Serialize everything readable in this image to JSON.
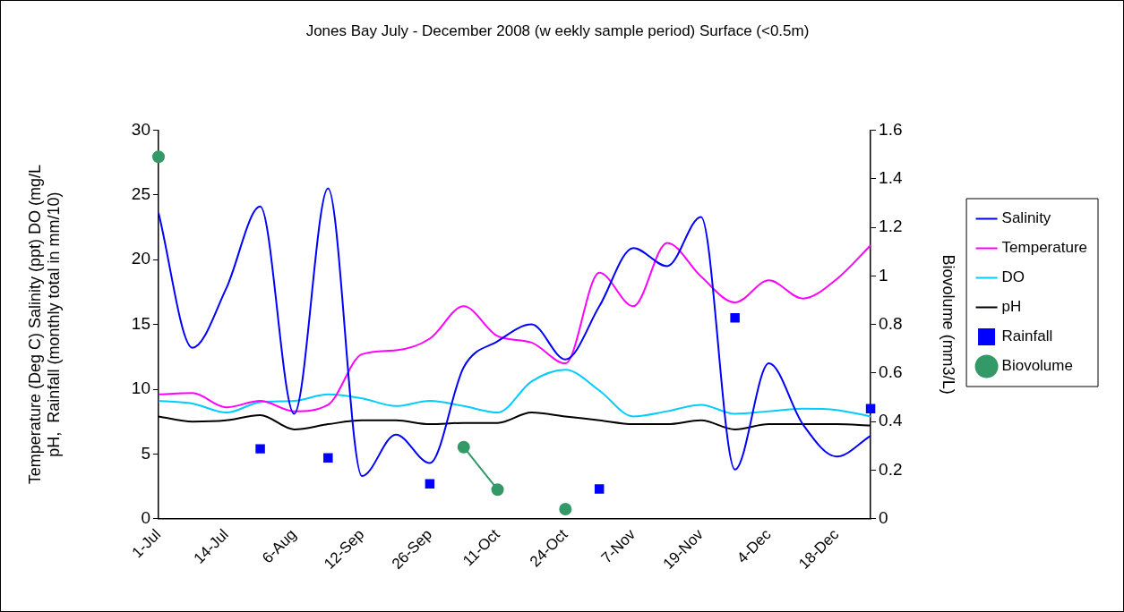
{
  "chart_data": {
    "type": "line",
    "title": "Jones Bay July - December 2008 (w eekly sample period) Surface (<0.5m)",
    "ylabel": "Temperature (Deg C) Salinity (ppt) DO (mg/L\npH,  Rainfall (monthly total in mm/10)",
    "y2label": "Biovolume (mm3/L)",
    "categories": [
      "1-Jul",
      null,
      "14-Jul",
      null,
      "6-Aug",
      null,
      "12-Sep",
      null,
      "26-Sep",
      null,
      "11-Oct",
      null,
      "24-Oct",
      null,
      "7-Nov",
      null,
      "19-Nov",
      null,
      "4-Dec",
      null,
      "18-Dec",
      null
    ],
    "series": [
      {
        "name": "Salinity",
        "color": "#0000ff",
        "marker": "none",
        "values": [
          23.6,
          13.2,
          17.8,
          24.1,
          8.1,
          25.5,
          3.3,
          6.5,
          4.3,
          11.7,
          13.7,
          15.0,
          12.3,
          16.4,
          20.9,
          19.5,
          23.3,
          3.8,
          12.0,
          7.3,
          4.8,
          6.4
        ]
      },
      {
        "name": "Temperature",
        "color": "#ff00ff",
        "marker": "none",
        "values": [
          9.6,
          9.7,
          8.6,
          9.1,
          8.3,
          8.8,
          12.7,
          13.0,
          13.9,
          16.4,
          14.1,
          13.6,
          12.0,
          19.0,
          16.4,
          21.3,
          18.7,
          16.7,
          18.4,
          17.0,
          18.5,
          21.1
        ]
      },
      {
        "name": "DO",
        "color": "#00ccff",
        "marker": "none",
        "values": [
          9.1,
          8.9,
          8.2,
          9.0,
          9.1,
          9.6,
          9.3,
          8.7,
          9.1,
          8.7,
          8.2,
          10.6,
          11.5,
          9.9,
          7.9,
          8.3,
          8.8,
          8.1,
          8.3,
          8.5,
          8.4,
          7.9
        ]
      },
      {
        "name": "pH",
        "color": "#000000",
        "marker": "none",
        "values": [
          7.9,
          7.5,
          7.6,
          8.0,
          6.9,
          7.3,
          7.6,
          7.6,
          7.3,
          7.4,
          7.4,
          8.2,
          7.9,
          7.6,
          7.3,
          7.3,
          7.6,
          6.9,
          7.3,
          7.3,
          7.3,
          7.2
        ]
      },
      {
        "name": "Rainfall",
        "type": "scatter",
        "color": "#0000ff",
        "marker": "square",
        "values": [
          null,
          null,
          null,
          5.4,
          null,
          4.7,
          null,
          null,
          2.7,
          null,
          null,
          null,
          null,
          2.3,
          null,
          null,
          null,
          15.5,
          null,
          null,
          null,
          8.5
        ]
      },
      {
        "name": "Biovolume",
        "color": "#339966",
        "marker": "circle",
        "axis": "y2",
        "values": [
          1.49,
          null,
          null,
          null,
          null,
          null,
          null,
          null,
          null,
          0.295,
          0.12,
          null,
          0.04,
          null,
          null,
          null,
          null,
          null,
          null,
          null,
          null,
          null
        ]
      }
    ],
    "ylim": [
      0,
      30
    ],
    "yticks": [
      0,
      5,
      10,
      15,
      20,
      25,
      30
    ],
    "y2lim": [
      0,
      1.6
    ],
    "y2ticks": [
      0,
      0.2,
      0.4,
      0.6,
      0.8,
      1,
      1.2,
      1.4,
      1.6
    ],
    "grid": false,
    "legend": "right"
  }
}
